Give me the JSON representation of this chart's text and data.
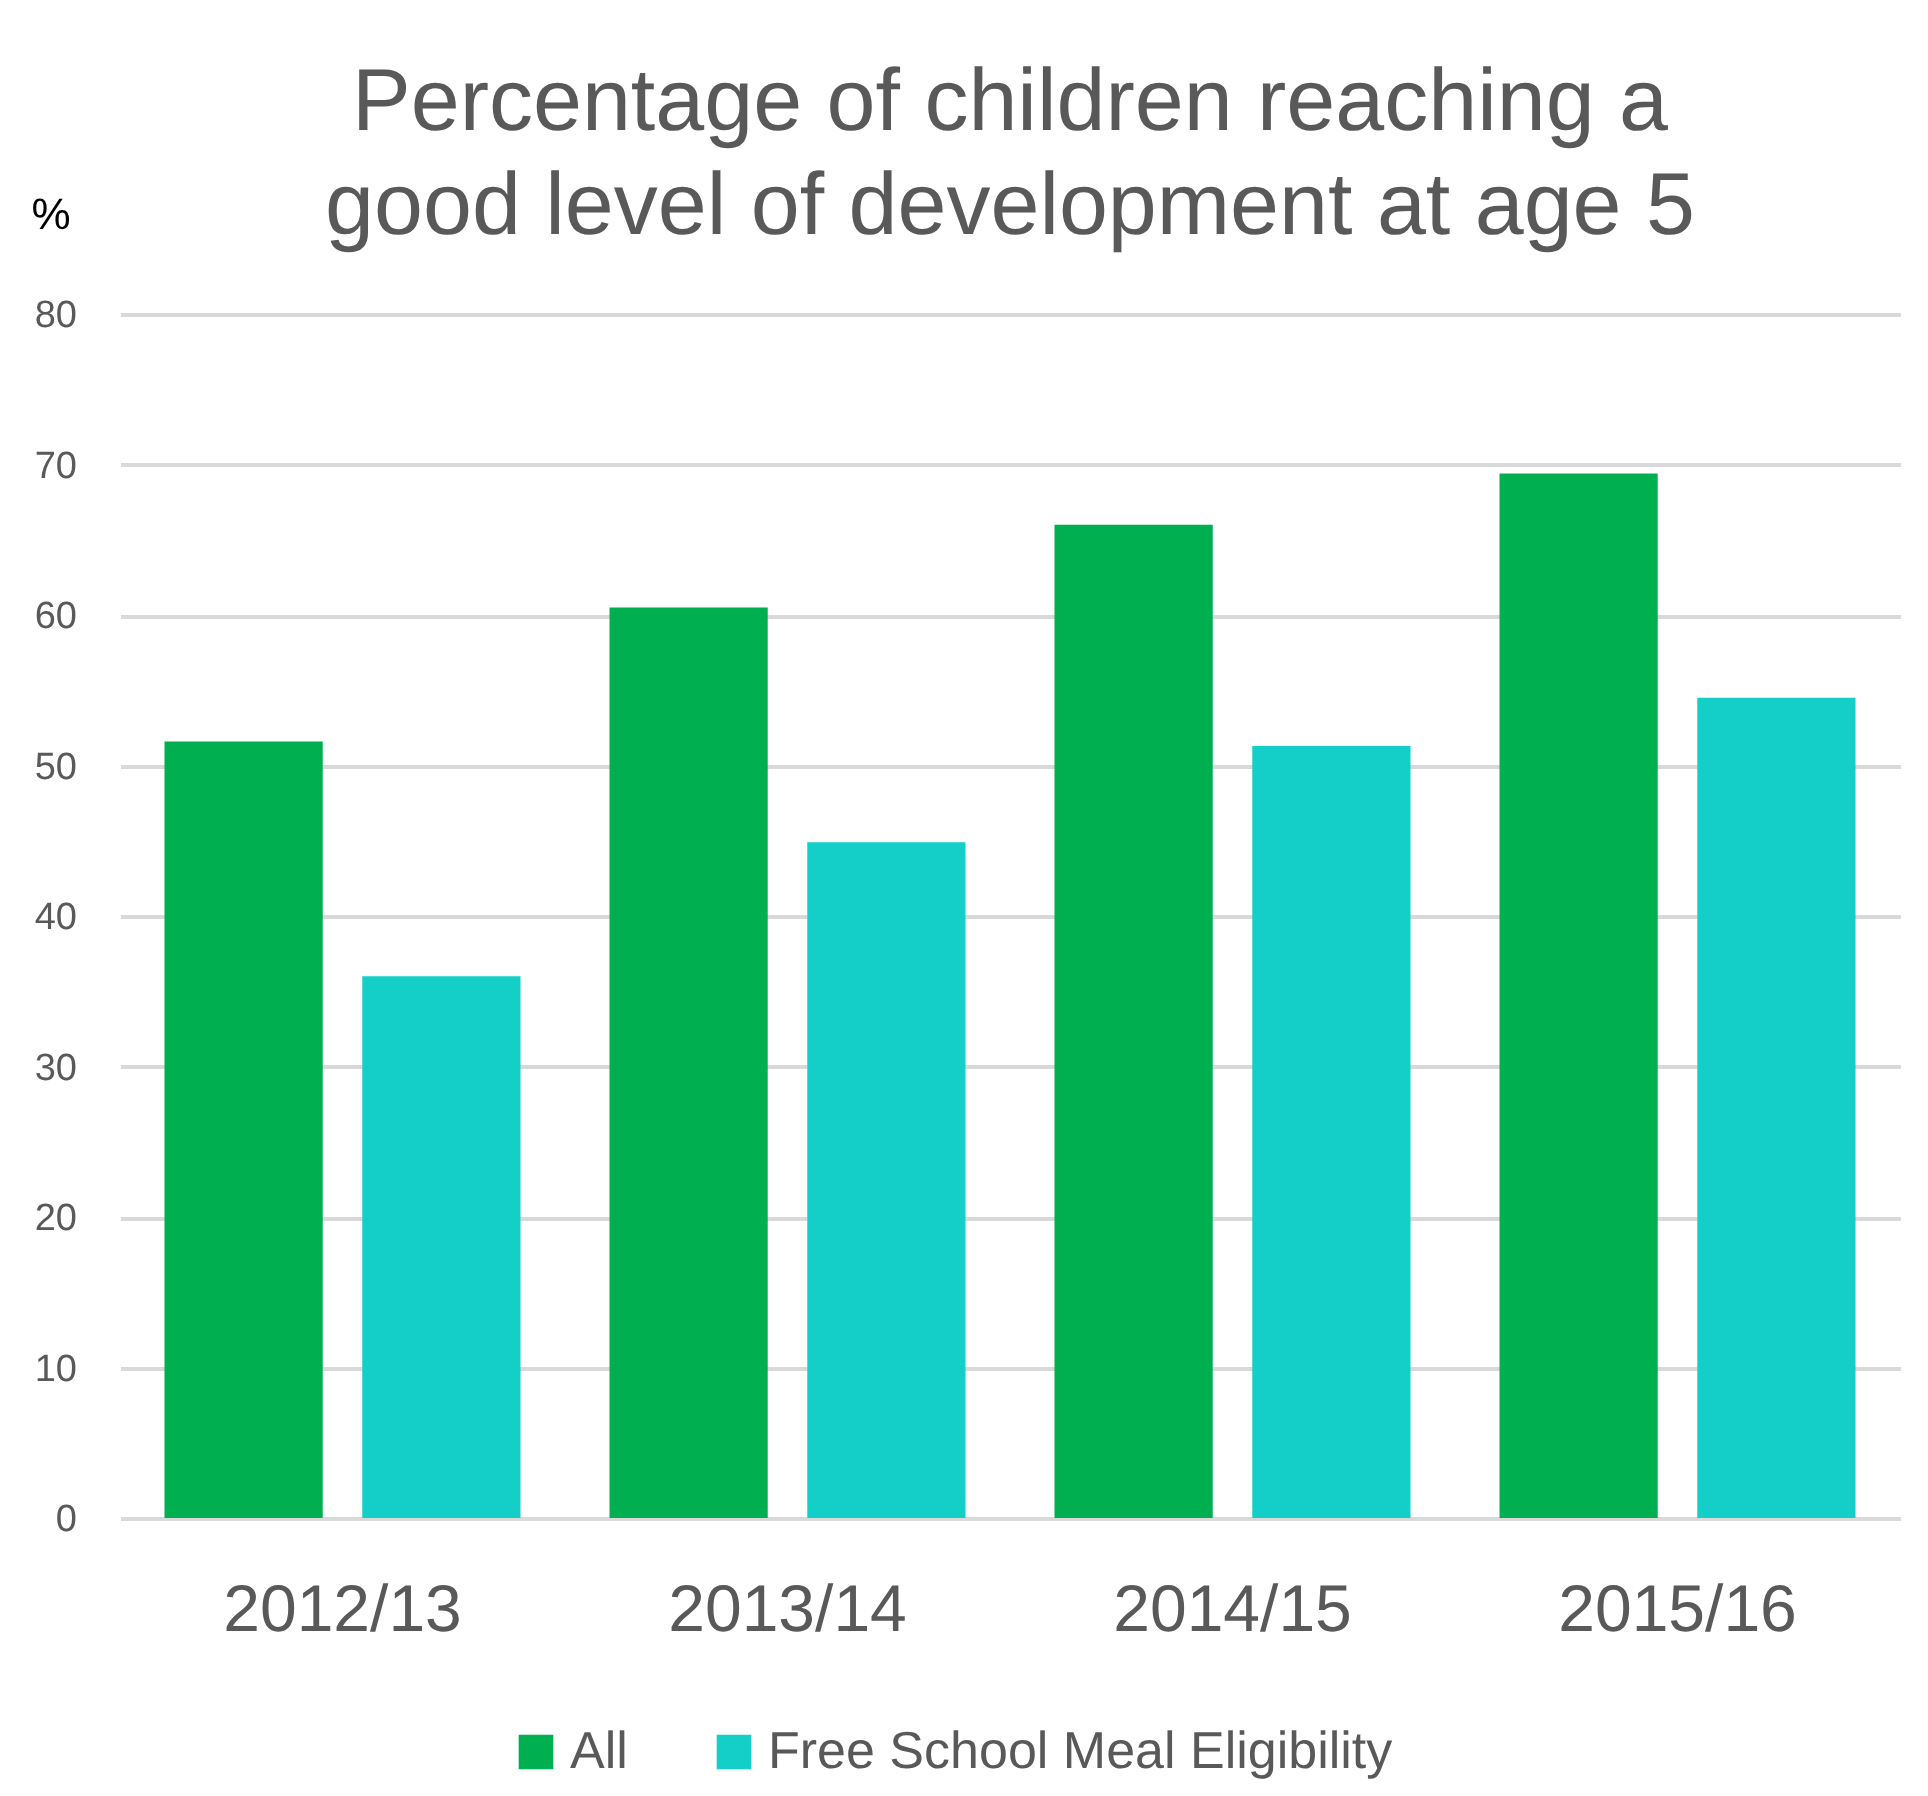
{
  "chart_data": {
    "type": "bar",
    "title": [
      "Percentage of children reaching a",
      "good level of development at age 5"
    ],
    "ylabel": "%",
    "categories": [
      "2012/13",
      "2013/14",
      "2014/15",
      "2015/16"
    ],
    "series": [
      {
        "name": "All",
        "color": "#00b050",
        "values": [
          51.6,
          60.5,
          66.0,
          69.4
        ]
      },
      {
        "name": "Free School Meal Eligibility",
        "color": "#13cfc7",
        "values": [
          36.0,
          44.9,
          51.3,
          54.5
        ]
      }
    ],
    "ylim": [
      0,
      80
    ],
    "yticks": [
      0,
      10,
      20,
      30,
      40,
      50,
      60,
      70,
      80
    ],
    "grid": "y",
    "legend": "bottom"
  }
}
